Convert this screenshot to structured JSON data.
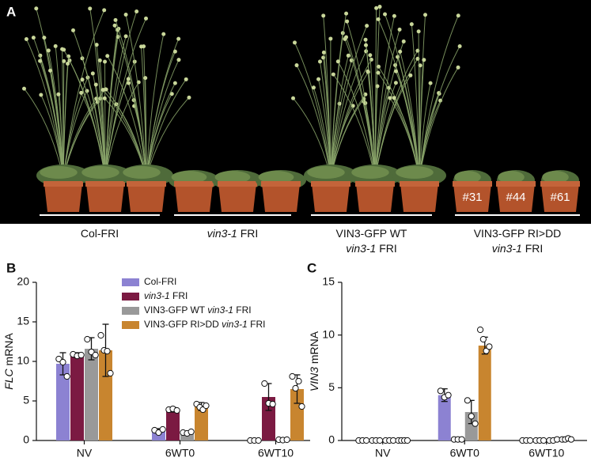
{
  "photo": {
    "label": "A",
    "pot_labels": [
      "#31",
      "#44",
      "#61"
    ],
    "groups": [
      [
        [
          {
            "text": "Col-FRI"
          }
        ]
      ],
      [
        [
          {
            "text": "vin3-1",
            "italic": true
          },
          {
            "text": " FRI"
          }
        ]
      ],
      [
        [
          {
            "text": "VIN3-GFP WT"
          }
        ],
        [
          {
            "text": "vin3-1",
            "italic": true
          },
          {
            "text": " FRI"
          }
        ]
      ],
      [
        [
          {
            "text": "VIN3-GFP RI>DD"
          }
        ],
        [
          {
            "text": "vin3-1",
            "italic": true
          },
          {
            "text": " FRI"
          }
        ]
      ]
    ]
  },
  "chart_data": [
    {
      "type": "bar",
      "label": "B",
      "ylabel": [
        {
          "text": "FLC",
          "italic": true
        },
        {
          "text": " mRNA"
        }
      ],
      "categories": [
        "NV",
        "6WT0",
        "6WT10"
      ],
      "ylim": [
        0,
        20
      ],
      "yticks": [
        0,
        5,
        10,
        15,
        20
      ],
      "legend": "top",
      "series": [
        {
          "name": [
            {
              "text": "Col-FRI"
            }
          ],
          "color": "#8c82d2",
          "values": [
            9.7,
            1.2,
            0
          ],
          "errors": [
            1.4,
            0.3,
            0
          ],
          "points": [
            [
              10.3,
              9.9,
              8.1
            ],
            [
              1.3,
              1.0,
              1.4
            ],
            [
              0,
              0,
              0
            ]
          ]
        },
        {
          "name": [
            {
              "text": "vin3-1",
              "italic": true
            },
            {
              "text": " FRI"
            }
          ],
          "color": "#7b1a42",
          "values": [
            10.8,
            3.9,
            5.5
          ],
          "errors": [
            0.3,
            0.3,
            1.7
          ],
          "points": [
            [
              10.9,
              10.7,
              10.8
            ],
            [
              3.9,
              4.0,
              3.8
            ],
            [
              7.2,
              4.7,
              4.6
            ]
          ]
        },
        {
          "name": [
            {
              "text": "VIN3-GFP WT "
            },
            {
              "text": "vin3-1",
              "italic": true
            },
            {
              "text": " FRI"
            }
          ],
          "color": "#999999",
          "values": [
            11.6,
            1.0,
            0.05
          ],
          "errors": [
            1.4,
            0.15,
            0.1
          ],
          "points": [
            [
              12.8,
              11.2,
              10.8
            ],
            [
              1.0,
              0.9,
              1.1
            ],
            [
              0.1,
              0.05,
              0.1
            ]
          ]
        },
        {
          "name": [
            {
              "text": "VIN3-GFP RI>DD "
            },
            {
              "text": "vin3-1",
              "italic": true
            },
            {
              "text": " FRI"
            }
          ],
          "color": "#c8852f",
          "values": [
            11.4,
            4.3,
            6.5
          ],
          "errors": [
            3.3,
            0.5,
            1.8
          ],
          "points": [
            [
              13.3,
              11.4,
              11.3,
              8.5
            ],
            [
              4.6,
              4.2,
              3.9,
              4.4
            ],
            [
              8.1,
              6.6,
              7.5,
              4.3
            ]
          ]
        }
      ]
    },
    {
      "type": "bar",
      "label": "C",
      "ylabel": [
        {
          "text": "VIN3",
          "italic": true
        },
        {
          "text": " mRNA"
        }
      ],
      "categories": [
        "NV",
        "6WT0",
        "6WT10"
      ],
      "ylim": [
        0,
        15
      ],
      "yticks": [
        0,
        5,
        10,
        15
      ],
      "series": [
        {
          "color": "#8c82d2",
          "values": [
            0,
            4.3,
            0
          ],
          "errors": [
            0,
            0.6,
            0
          ],
          "points": [
            [
              0,
              0,
              0
            ],
            [
              4.7,
              4.1,
              4.3
            ],
            [
              0,
              0,
              0
            ]
          ]
        },
        {
          "color": "#7b1a42",
          "values": [
            0,
            0.1,
            0
          ],
          "errors": [
            0,
            0.05,
            0
          ],
          "points": [
            [
              0,
              0,
              0
            ],
            [
              0.1,
              0.1,
              0.1
            ],
            [
              0,
              0,
              0
            ]
          ]
        },
        {
          "color": "#999999",
          "values": [
            0,
            2.7,
            0.05
          ],
          "errors": [
            0,
            1.1,
            0.05
          ],
          "points": [
            [
              0,
              0,
              0
            ],
            [
              3.8,
              2.3,
              1.6
            ],
            [
              0,
              0,
              0.1
            ]
          ]
        },
        {
          "color": "#c8852f",
          "values": [
            0,
            9.0,
            0.1
          ],
          "errors": [
            0,
            0.8,
            0.05
          ],
          "points": [
            [
              0,
              0,
              0,
              0
            ],
            [
              10.5,
              9.6,
              8.5,
              8.9
            ],
            [
              0.1,
              0.1,
              0.2,
              0.1
            ]
          ]
        }
      ]
    }
  ]
}
